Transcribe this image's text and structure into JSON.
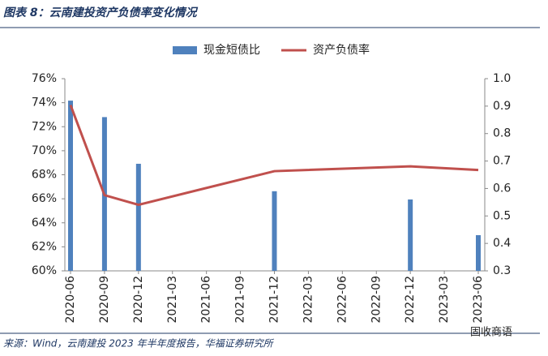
{
  "chart_data": {
    "type": "bar-line",
    "title": "图表 8：云南建投资产负债率变化情况",
    "source": "来源：Wind，云南建投 2023 年半年度报告，华福证券研究所",
    "watermark": "固收商语",
    "categories": [
      "2020-06",
      "2020-09",
      "2020-12",
      "2021-03",
      "2021-06",
      "2021-09",
      "2021-12",
      "2022-03",
      "2022-06",
      "2022-09",
      "2022-12",
      "2023-03",
      "2023-06"
    ],
    "series": [
      {
        "name": "现金短债比",
        "type": "bar",
        "axis": "y2",
        "color": "#4f81bd",
        "x": [
          "2020-06",
          "2020-09",
          "2020-12",
          "2021-12",
          "2022-12",
          "2023-06"
        ],
        "values": [
          0.92,
          0.86,
          0.69,
          0.59,
          0.56,
          0.43
        ]
      },
      {
        "name": "资产负债率",
        "type": "line",
        "axis": "y",
        "color": "#c0504d",
        "x": [
          "2020-06",
          "2020-09",
          "2020-12",
          "2021-12",
          "2022-12",
          "2023-06"
        ],
        "values": [
          73.8,
          66.3,
          65.5,
          68.3,
          68.7,
          68.4
        ]
      }
    ],
    "ylim": [
      60,
      76
    ],
    "yticks": [
      {
        "value": 60,
        "label": "60%"
      },
      {
        "value": 62,
        "label": "62%"
      },
      {
        "value": 64,
        "label": "64%"
      },
      {
        "value": 66,
        "label": "66%"
      },
      {
        "value": 68,
        "label": "68%"
      },
      {
        "value": 70,
        "label": "70%"
      },
      {
        "value": 72,
        "label": "72%"
      },
      {
        "value": 74,
        "label": "74%"
      },
      {
        "value": 76,
        "label": "76%"
      }
    ],
    "y2lim": [
      0.3,
      1.0
    ],
    "y2ticks": [
      0.3,
      0.4,
      0.5,
      0.6,
      0.7,
      0.8,
      0.9,
      {
        "value": 1,
        "label": "1.0"
      }
    ],
    "legend": "top"
  }
}
